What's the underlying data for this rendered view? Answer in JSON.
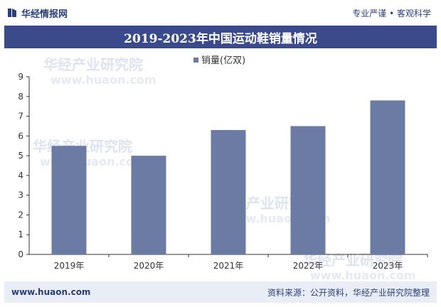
{
  "header": {
    "brand_name": "华经情报网",
    "slogan": "专业严谨 • 客观科学"
  },
  "title": "2019-2023年中国运动鞋销量情况",
  "footer": {
    "url": "www.huaon.com",
    "source": "资料来源：公开资料，华经产业研究院整理"
  },
  "watermark": {
    "cn": "华经产业研究院",
    "en": "www.huaon.com"
  },
  "colors": {
    "bar": "#6b7ba3",
    "title_bg": "#3b4a8a",
    "footer_bg": "#e9edf6"
  },
  "chart_data": {
    "type": "bar",
    "title": "2019-2023年中国运动鞋销量情况",
    "categories": [
      "2019年",
      "2020年",
      "2021年",
      "2022年",
      "2023年"
    ],
    "series": [
      {
        "name": "销量(亿双)",
        "values": [
          5.5,
          5.0,
          6.3,
          6.5,
          7.8
        ]
      }
    ],
    "xlabel": "",
    "ylabel": "",
    "ylim": [
      0,
      9
    ],
    "yticks": [
      0,
      1,
      2,
      3,
      4,
      5,
      6,
      7,
      8,
      9
    ],
    "grid": false,
    "legend_position": "top-center"
  }
}
